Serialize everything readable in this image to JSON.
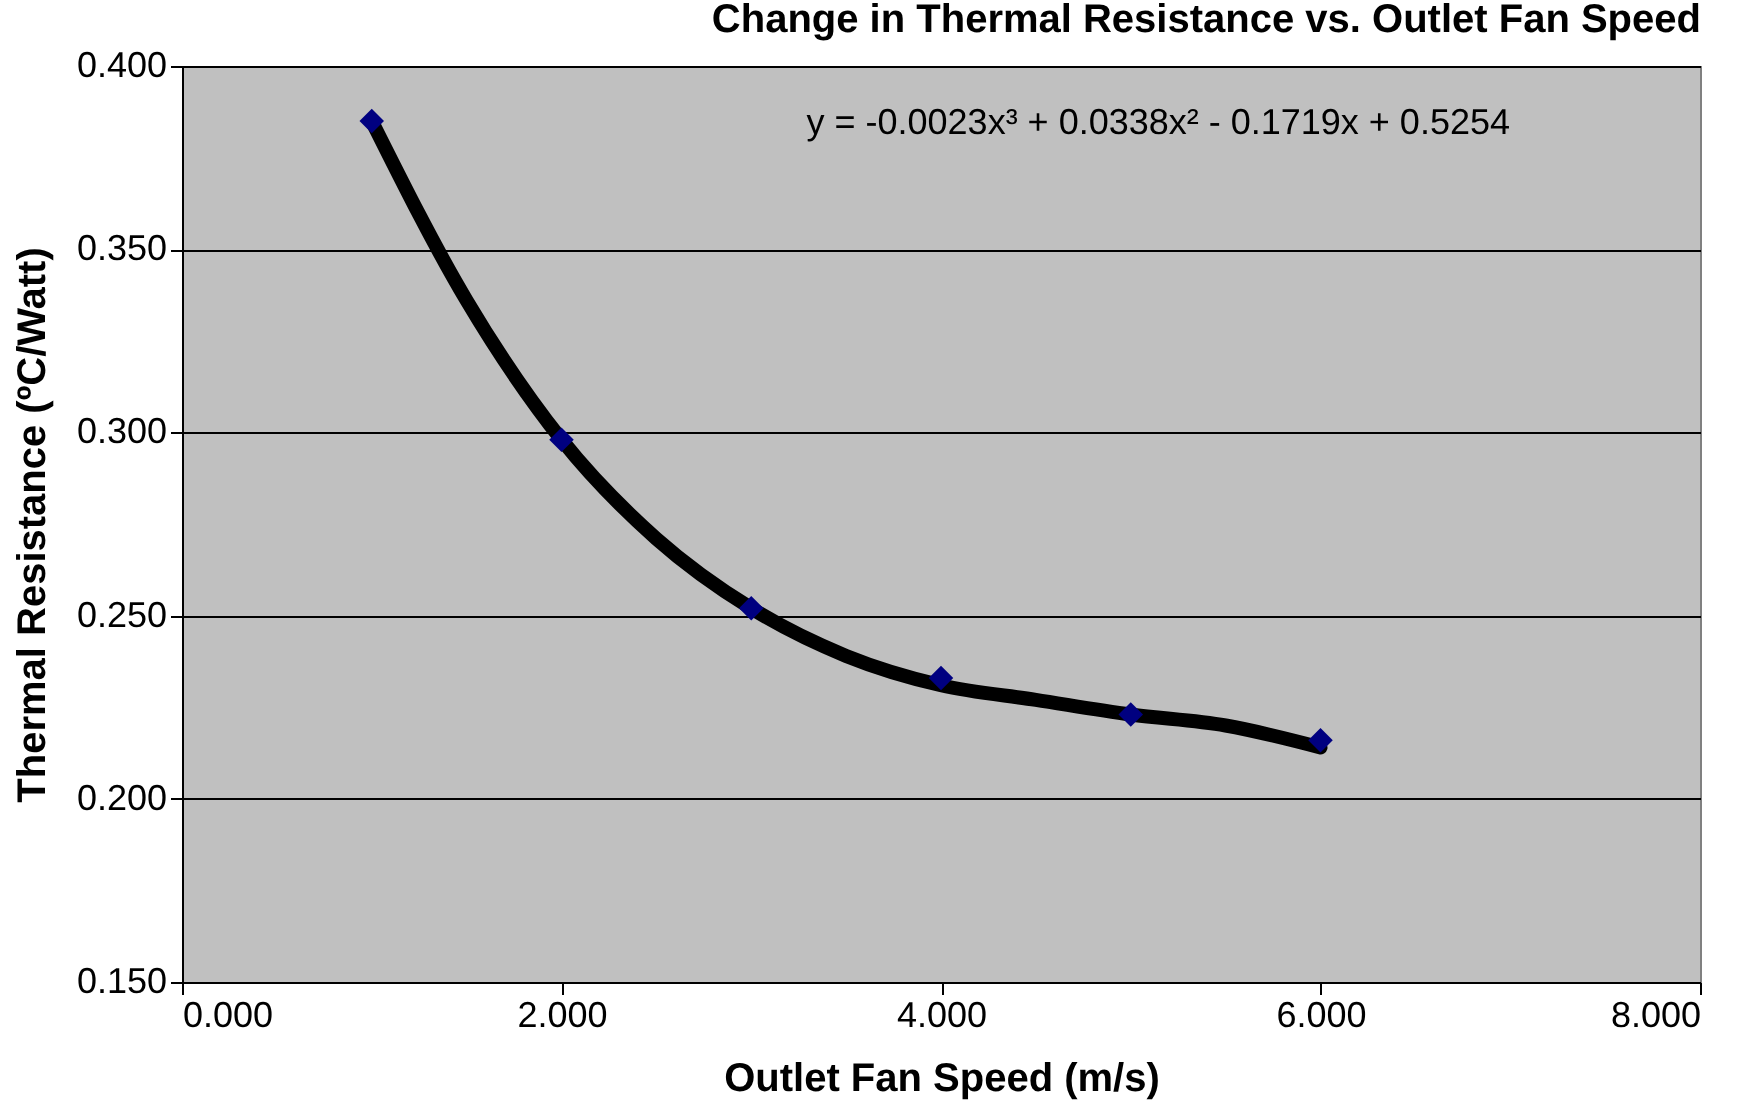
{
  "chart_data": {
    "type": "scatter",
    "title": "Change in Thermal Resistance vs. Outlet Fan Speed",
    "xlabel": "Outlet Fan Speed (m/s)",
    "ylabel": "Thermal Resistance (ºC/Watt)",
    "x": [
      1,
      2,
      3,
      4,
      5,
      6
    ],
    "series": [
      {
        "type": "scatter",
        "color": "#000080",
        "marker": "diamond",
        "values": [
          0.385,
          0.298,
          0.252,
          0.233,
          0.223,
          0.216
        ]
      },
      {
        "type": "line",
        "color": "#000000",
        "line_style": "solid",
        "x": [
          1,
          1.5,
          2,
          2.5,
          3,
          3.5,
          4,
          4.5,
          5,
          5.5,
          6
        ],
        "values": [
          0.385,
          0.336,
          0.298,
          0.271,
          0.252,
          0.239,
          0.231,
          0.227,
          0.223,
          0.22,
          0.214
        ]
      }
    ],
    "xlim": [
      0,
      8
    ],
    "xticks": [
      {
        "value": 0,
        "label": "0.000"
      },
      {
        "value": 2,
        "label": "2.000"
      },
      {
        "value": 4,
        "label": "4.000"
      },
      {
        "value": 6,
        "label": "6.000"
      },
      {
        "value": 8,
        "label": "8.000"
      }
    ],
    "ylim": [
      0.15,
      0.4
    ],
    "yticks": [
      {
        "value": 0.15,
        "label": "0.150"
      },
      {
        "value": 0.2,
        "label": "0.200"
      },
      {
        "value": 0.25,
        "label": "0.250"
      },
      {
        "value": 0.3,
        "label": "0.300"
      },
      {
        "value": 0.35,
        "label": "0.350"
      },
      {
        "value": 0.4,
        "label": "0.400"
      }
    ],
    "grid": "y",
    "annotations": [
      "y = -0.0023x³ + 0.0338x² - 0.1719x + 0.5254"
    ]
  }
}
